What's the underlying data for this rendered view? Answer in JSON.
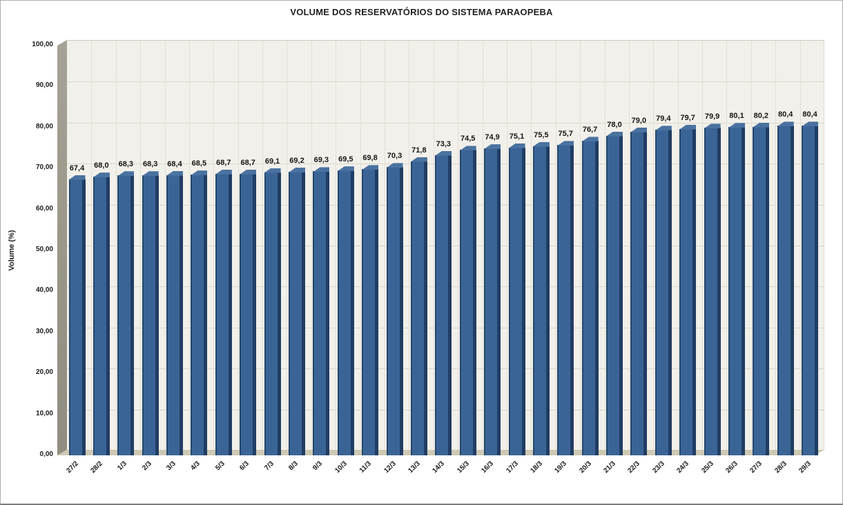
{
  "window": {
    "background": "#ffffff",
    "border_color": "#adadad"
  },
  "chart_data": {
    "type": "bar",
    "style": "3d-column",
    "title": "VOLUME DOS RESERVATÓRIOS DO SISTEMA PARAOPEBA",
    "xlabel": "",
    "ylabel": "Volume (%)",
    "legend": false,
    "grid": true,
    "ylim": [
      0,
      100
    ],
    "ytick_step": 10,
    "yticks": {
      "values": [
        0,
        10,
        20,
        30,
        40,
        50,
        60,
        70,
        80,
        90,
        100
      ],
      "labels": [
        "0,00",
        "10,00",
        "20,00",
        "30,00",
        "40,00",
        "50,00",
        "60,00",
        "70,00",
        "80,00",
        "90,00",
        "100,00"
      ]
    },
    "categories": [
      "27/2",
      "28/2",
      "1/3",
      "2/3",
      "3/3",
      "4/3",
      "5/3",
      "6/3",
      "7/3",
      "8/3",
      "9/3",
      "10/3",
      "11/3",
      "12/3",
      "13/3",
      "14/3",
      "15/3",
      "16/3",
      "17/3",
      "18/3",
      "19/3",
      "20/3",
      "21/3",
      "22/3",
      "23/3",
      "24/3",
      "25/3",
      "26/3",
      "27/3",
      "28/3",
      "29/3"
    ],
    "values": [
      67.4,
      68.0,
      68.3,
      68.3,
      68.4,
      68.5,
      68.7,
      68.7,
      69.1,
      69.2,
      69.3,
      69.5,
      69.8,
      70.3,
      71.8,
      73.3,
      74.5,
      74.9,
      75.1,
      75.5,
      75.7,
      76.7,
      78.0,
      79.0,
      79.4,
      79.7,
      79.9,
      80.1,
      80.2,
      80.4,
      80.4
    ],
    "data_labels": [
      "67,4",
      "68,0",
      "68,3",
      "68,3",
      "68,4",
      "68,5",
      "68,7",
      "68,7",
      "69,1",
      "69,2",
      "69,3",
      "69,5",
      "69,8",
      "70,3",
      "71,8",
      "73,3",
      "74,5",
      "74,9",
      "75,1",
      "75,5",
      "75,7",
      "76,7",
      "78,0",
      "79,0",
      "79,4",
      "79,7",
      "79,9",
      "80,1",
      "80,2",
      "80,4",
      "80,4"
    ],
    "colors": {
      "bar_front": "#3b6496",
      "bar_edge_left": "#24466d",
      "bar_edge_right": "#203d63",
      "bar_cap": "#4a72a0",
      "back_wall": "#f2f0ea",
      "gridline": "#d9d6cb",
      "category_separator": "#e2dfd5",
      "side_wall": "#9a978a",
      "floor": "#cdc9b4",
      "text": "#1a1a1a"
    }
  }
}
